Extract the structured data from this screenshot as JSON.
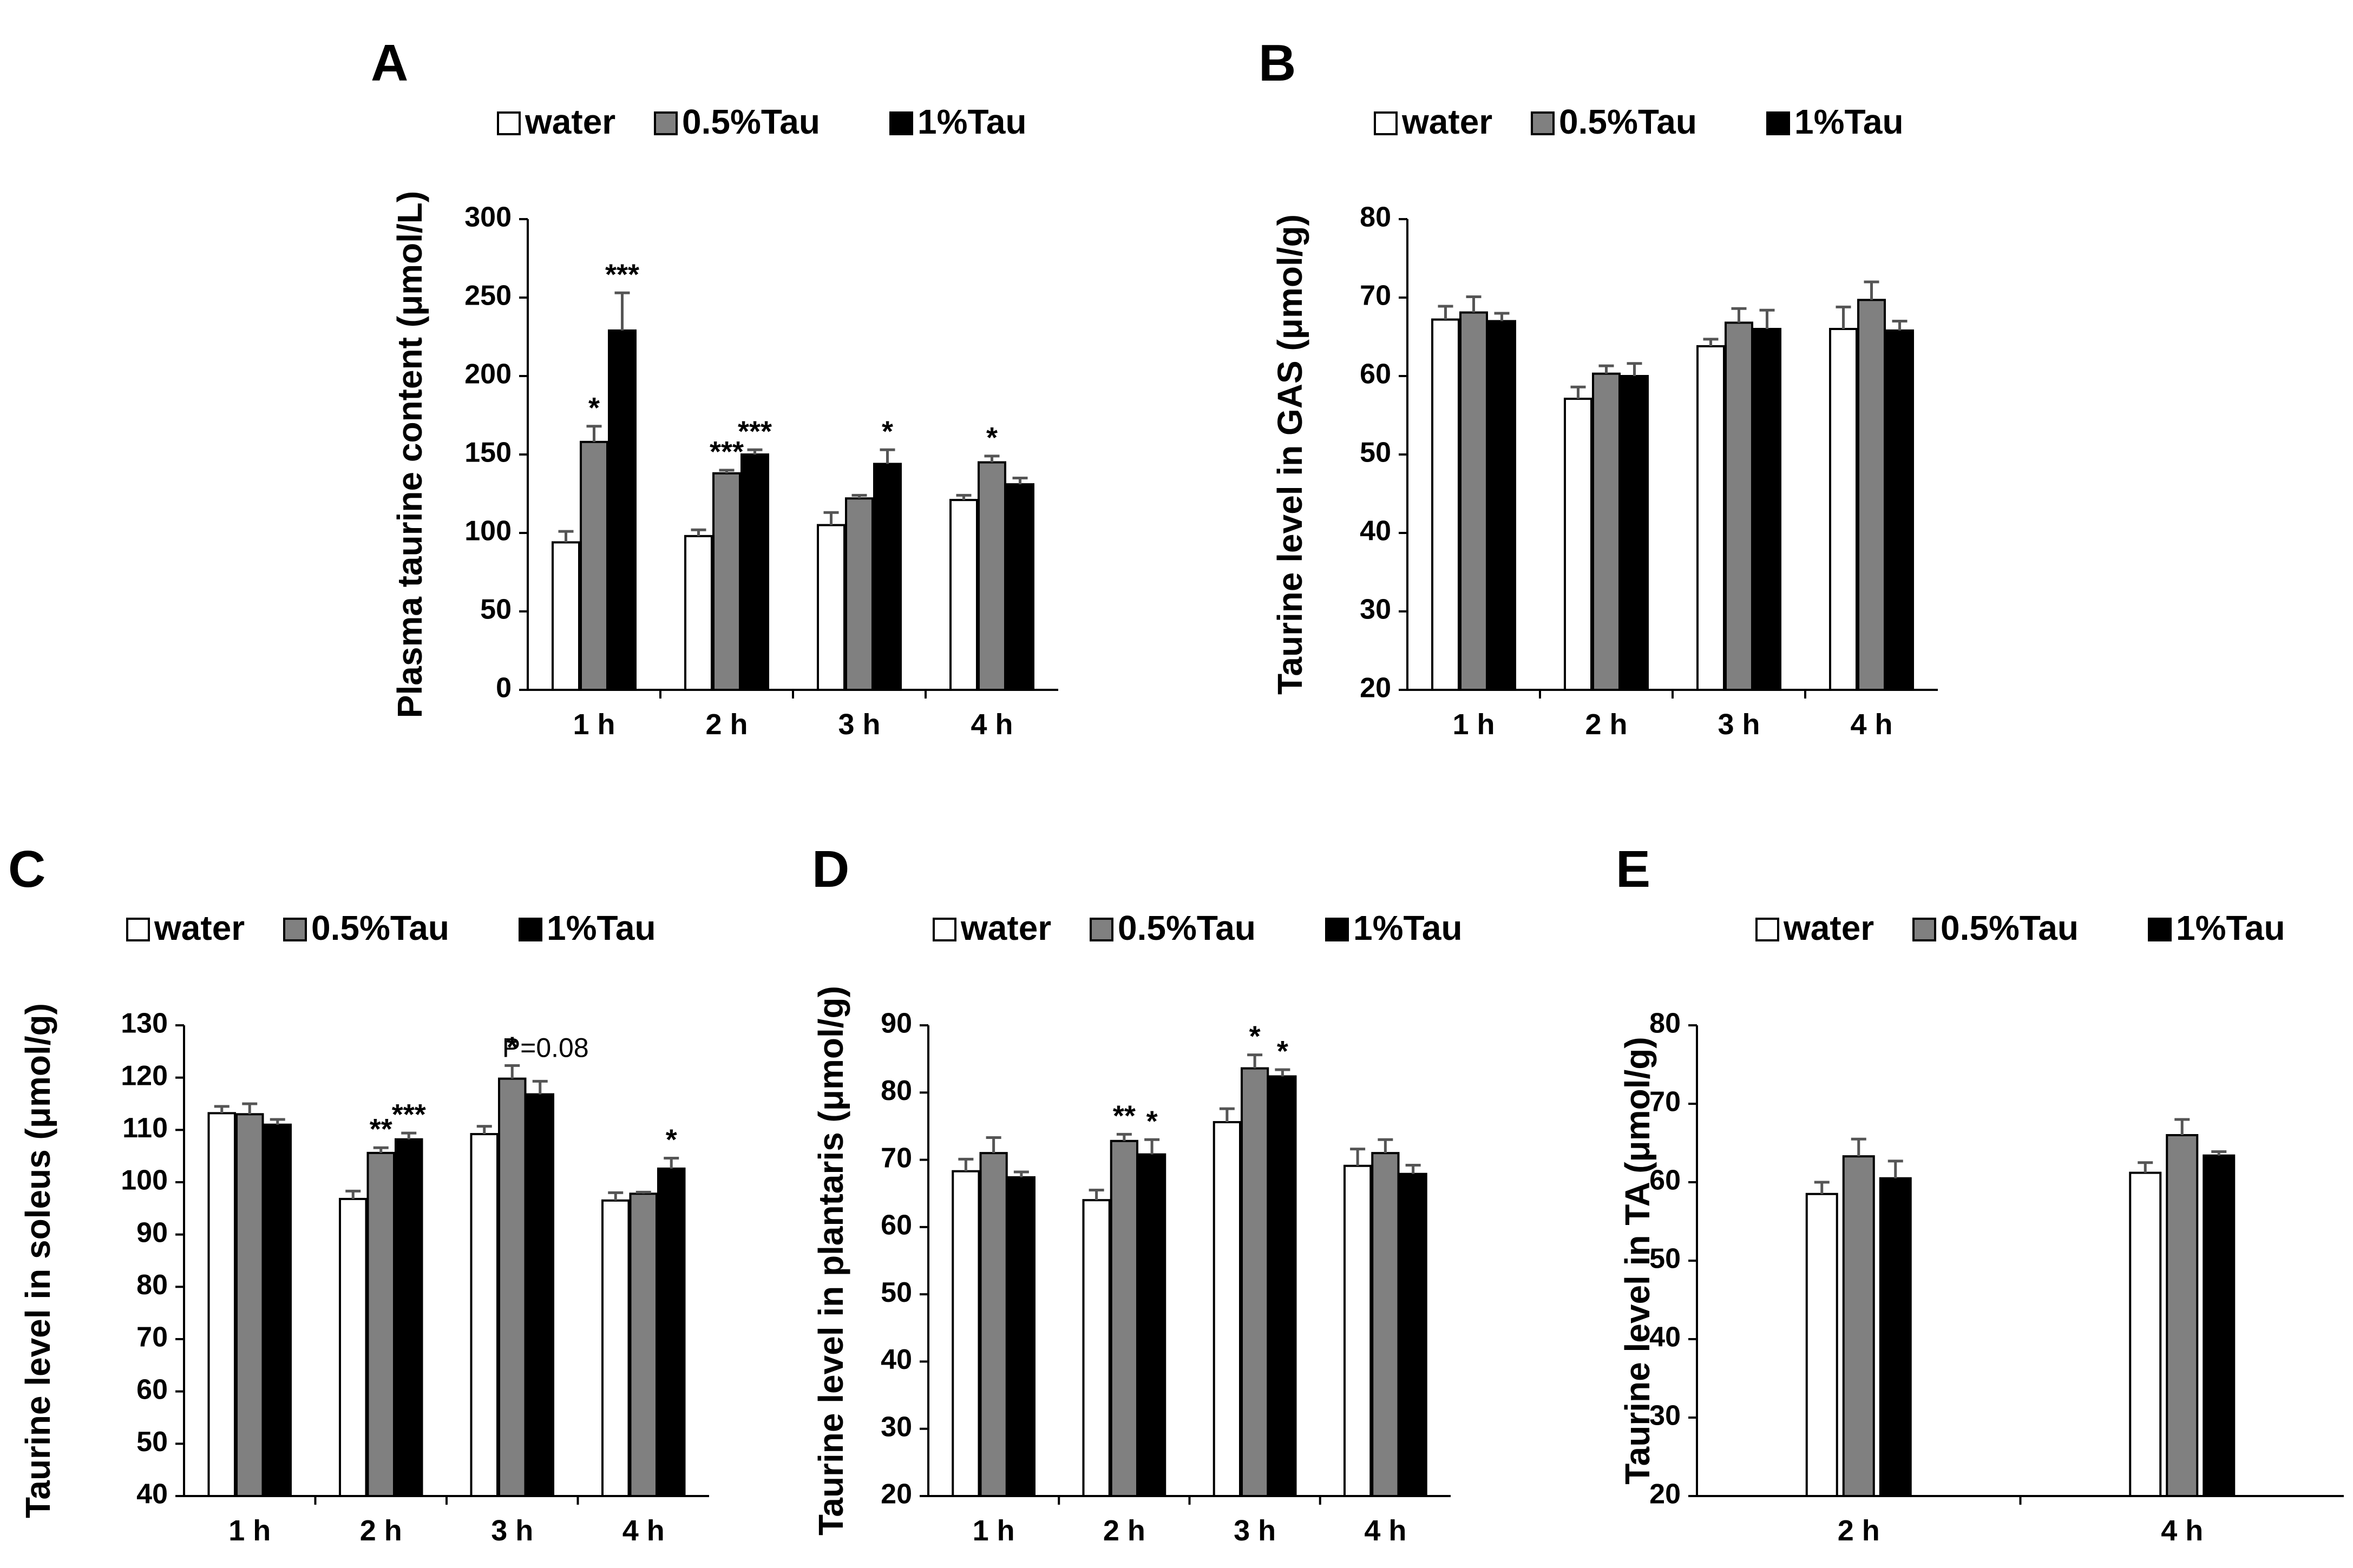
{
  "colors": {
    "water": "#ffffff",
    "tau05": "#808080",
    "tau1": "#000000",
    "error_bar": "#555555",
    "axis": "#000000"
  },
  "chart_data": [
    {
      "panel": "A",
      "type": "bar",
      "legend": [
        "water",
        "0.5%Tau",
        "1%Tau"
      ],
      "categories": [
        "1 h",
        "2 h",
        "3 h",
        "4 h"
      ],
      "ylabel": "Plasma taurine content (μmol/L)",
      "ylim": [
        0,
        300
      ],
      "yticks": [
        "0",
        "50",
        "100",
        "150",
        "200",
        "250",
        "300"
      ],
      "series": [
        {
          "name": "water",
          "values": [
            94,
            98,
            105,
            121
          ],
          "errors": [
            7,
            4,
            8,
            3
          ]
        },
        {
          "name": "0.5%Tau",
          "values": [
            158,
            138,
            122,
            145
          ],
          "errors": [
            10,
            2,
            2,
            4
          ]
        },
        {
          "name": "1%Tau",
          "values": [
            229,
            150,
            144,
            131
          ],
          "errors": [
            24,
            3,
            9,
            4
          ]
        }
      ],
      "annotations": [
        {
          "text": "*",
          "category": 0,
          "series": 1
        },
        {
          "text": "***",
          "category": 0,
          "series": 2
        },
        {
          "text": "***",
          "category": 1,
          "series": 1
        },
        {
          "text": "***",
          "category": 1,
          "series": 2
        },
        {
          "text": "*",
          "category": 2,
          "series": 2
        },
        {
          "text": "*",
          "category": 3,
          "series": 1
        }
      ]
    },
    {
      "panel": "B",
      "type": "bar",
      "legend": [
        "water",
        "0.5%Tau",
        "1%Tau"
      ],
      "categories": [
        "1 h",
        "2 h",
        "3 h",
        "4 h"
      ],
      "ylabel": "Taurine level in GAS (μmol/g)",
      "ylim": [
        20,
        80
      ],
      "yticks": [
        "20",
        "30",
        "40",
        "50",
        "60",
        "70",
        "80"
      ],
      "series": [
        {
          "name": "water",
          "values": [
            67.2,
            57.1,
            63.8,
            66.0
          ],
          "errors": [
            1.7,
            1.5,
            0.9,
            2.8
          ]
        },
        {
          "name": "0.5%Tau",
          "values": [
            68.1,
            60.3,
            66.8,
            69.7
          ],
          "errors": [
            2.0,
            1.0,
            1.8,
            2.3
          ]
        },
        {
          "name": "1%Tau",
          "values": [
            67.0,
            60.0,
            66.0,
            65.8
          ],
          "errors": [
            1.0,
            1.6,
            2.4,
            1.2
          ]
        }
      ],
      "annotations": []
    },
    {
      "panel": "C",
      "type": "bar",
      "legend": [
        "water",
        "0.5%Tau",
        "1%Tau"
      ],
      "categories": [
        "1 h",
        "2 h",
        "3 h",
        "4 h"
      ],
      "ylabel": "Taurine level in soleus (μmol/g)",
      "ylim": [
        40,
        130
      ],
      "yticks": [
        "40",
        "50",
        "60",
        "70",
        "80",
        "90",
        "100",
        "110",
        "120",
        "130"
      ],
      "series": [
        {
          "name": "water",
          "values": [
            113.2,
            96.8,
            109.2,
            96.5
          ],
          "errors": [
            1.3,
            1.5,
            1.5,
            1.5
          ]
        },
        {
          "name": "0.5%Tau",
          "values": [
            113.0,
            105.6,
            119.8,
            97.8
          ],
          "errors": [
            2.0,
            1.0,
            2.5,
            0.3
          ]
        },
        {
          "name": "1%Tau",
          "values": [
            111.0,
            108.2,
            116.8,
            102.6
          ],
          "errors": [
            1.0,
            1.2,
            2.5,
            2.0
          ]
        }
      ],
      "annotations": [
        {
          "text": "**",
          "category": 1,
          "series": 1
        },
        {
          "text": "***",
          "category": 1,
          "series": 2
        },
        {
          "text": "*",
          "category": 2,
          "series": 1
        },
        {
          "text": "P=0.08",
          "category": 2,
          "series": 2
        },
        {
          "text": "*",
          "category": 3,
          "series": 2
        }
      ]
    },
    {
      "panel": "D",
      "type": "bar",
      "legend": [
        "water",
        "0.5%Tau",
        "1%Tau"
      ],
      "categories": [
        "1 h",
        "2 h",
        "3 h",
        "4 h"
      ],
      "ylabel": "Taurine level in plantaris (μmol/g)",
      "ylim": [
        20,
        90
      ],
      "yticks": [
        "20",
        "30",
        "40",
        "50",
        "60",
        "70",
        "80",
        "90"
      ],
      "series": [
        {
          "name": "water",
          "values": [
            68.3,
            64.0,
            75.6,
            69.1
          ],
          "errors": [
            1.8,
            1.5,
            2.0,
            2.5
          ]
        },
        {
          "name": "0.5%Tau",
          "values": [
            71.0,
            72.8,
            83.6,
            71.0
          ],
          "errors": [
            2.3,
            1.0,
            2.0,
            2.0
          ]
        },
        {
          "name": "1%Tau",
          "values": [
            67.4,
            70.8,
            82.4,
            67.9
          ],
          "errors": [
            0.8,
            2.2,
            1.0,
            1.3
          ]
        }
      ],
      "annotations": [
        {
          "text": "**",
          "category": 1,
          "series": 1
        },
        {
          "text": "*",
          "category": 1,
          "series": 2
        },
        {
          "text": "*",
          "category": 2,
          "series": 1
        },
        {
          "text": "*",
          "category": 2,
          "series": 2
        }
      ]
    },
    {
      "panel": "E",
      "type": "bar",
      "legend": [
        "water",
        "0.5%Tau",
        "1%Tau"
      ],
      "categories": [
        "2 h",
        "4 h"
      ],
      "ylabel": "Taurine level in TA (μmol/g)",
      "ylim": [
        20,
        80
      ],
      "yticks": [
        "20",
        "30",
        "40",
        "50",
        "60",
        "70",
        "80"
      ],
      "series": [
        {
          "name": "water",
          "values": [
            58.5,
            61.2
          ],
          "errors": [
            1.5,
            1.3
          ]
        },
        {
          "name": "0.5%Tau",
          "values": [
            63.3,
            66.0
          ],
          "errors": [
            2.2,
            2.0
          ]
        },
        {
          "name": "1%Tau",
          "values": [
            60.5,
            63.4
          ],
          "errors": [
            2.2,
            0.5
          ]
        }
      ],
      "annotations": []
    }
  ]
}
